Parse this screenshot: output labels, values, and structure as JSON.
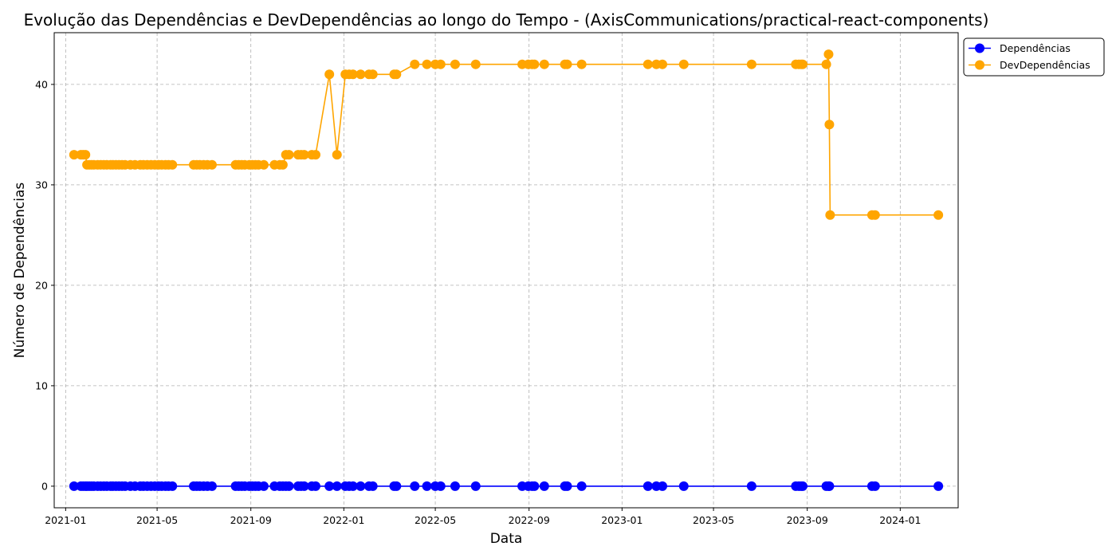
{
  "chart_data": {
    "type": "line",
    "title": "Evolução das Dependências e DevDependências ao longo do Tempo - (AxisCommunications/practical-react-components)",
    "xlabel": "Data",
    "ylabel": "Número de Dependências",
    "x_ticks": [
      "2021-01",
      "2021-05",
      "2021-09",
      "2022-01",
      "2022-05",
      "2022-09",
      "2023-01",
      "2023-05",
      "2023-09",
      "2024-01"
    ],
    "xlim": [
      "2020-12-17",
      "2024-03-17"
    ],
    "y_ticks": [
      0,
      10,
      20,
      30,
      40
    ],
    "ylim": [
      -2.15,
      45.15
    ],
    "grid": true,
    "legend_position": "outside-top-right",
    "series": [
      {
        "name": "Dependências",
        "color": "#0000ff",
        "points": [
          [
            "2021-01-12",
            0
          ],
          [
            "2021-01-21",
            0
          ],
          [
            "2021-01-24",
            0
          ],
          [
            "2021-01-27",
            0
          ],
          [
            "2021-01-29",
            0
          ],
          [
            "2021-02-01",
            0
          ],
          [
            "2021-02-04",
            0
          ],
          [
            "2021-02-07",
            0
          ],
          [
            "2021-02-12",
            0
          ],
          [
            "2021-02-16",
            0
          ],
          [
            "2021-02-20",
            0
          ],
          [
            "2021-02-24",
            0
          ],
          [
            "2021-03-01",
            0
          ],
          [
            "2021-03-04",
            0
          ],
          [
            "2021-03-08",
            0
          ],
          [
            "2021-03-12",
            0
          ],
          [
            "2021-03-16",
            0
          ],
          [
            "2021-03-20",
            0
          ],
          [
            "2021-03-27",
            0
          ],
          [
            "2021-04-02",
            0
          ],
          [
            "2021-04-09",
            0
          ],
          [
            "2021-04-13",
            0
          ],
          [
            "2021-04-18",
            0
          ],
          [
            "2021-04-23",
            0
          ],
          [
            "2021-04-28",
            0
          ],
          [
            "2021-05-03",
            0
          ],
          [
            "2021-05-07",
            0
          ],
          [
            "2021-05-12",
            0
          ],
          [
            "2021-05-16",
            0
          ],
          [
            "2021-05-21",
            0
          ],
          [
            "2021-06-18",
            0
          ],
          [
            "2021-06-22",
            0
          ],
          [
            "2021-06-26",
            0
          ],
          [
            "2021-07-01",
            0
          ],
          [
            "2021-07-06",
            0
          ],
          [
            "2021-07-12",
            0
          ],
          [
            "2021-08-12",
            0
          ],
          [
            "2021-08-16",
            0
          ],
          [
            "2021-08-20",
            0
          ],
          [
            "2021-08-24",
            0
          ],
          [
            "2021-08-30",
            0
          ],
          [
            "2021-09-03",
            0
          ],
          [
            "2021-09-07",
            0
          ],
          [
            "2021-09-11",
            0
          ],
          [
            "2021-09-18",
            0
          ],
          [
            "2021-10-02",
            0
          ],
          [
            "2021-10-09",
            0
          ],
          [
            "2021-10-13",
            0
          ],
          [
            "2021-10-17",
            0
          ],
          [
            "2021-10-21",
            0
          ],
          [
            "2021-11-02",
            0
          ],
          [
            "2021-11-06",
            0
          ],
          [
            "2021-11-10",
            0
          ],
          [
            "2021-11-20",
            0
          ],
          [
            "2021-11-25",
            0
          ],
          [
            "2021-12-13",
            0
          ],
          [
            "2021-12-23",
            0
          ],
          [
            "2022-01-03",
            0
          ],
          [
            "2022-01-08",
            0
          ],
          [
            "2022-01-13",
            0
          ],
          [
            "2022-01-23",
            0
          ],
          [
            "2022-02-03",
            0
          ],
          [
            "2022-02-08",
            0
          ],
          [
            "2022-03-08",
            0
          ],
          [
            "2022-03-11",
            0
          ],
          [
            "2022-04-04",
            0
          ],
          [
            "2022-04-20",
            0
          ],
          [
            "2022-05-01",
            0
          ],
          [
            "2022-05-08",
            0
          ],
          [
            "2022-05-27",
            0
          ],
          [
            "2022-06-23",
            0
          ],
          [
            "2022-08-23",
            0
          ],
          [
            "2022-08-31",
            0
          ],
          [
            "2022-09-05",
            0
          ],
          [
            "2022-09-08",
            0
          ],
          [
            "2022-09-21",
            0
          ],
          [
            "2022-10-18",
            0
          ],
          [
            "2022-10-21",
            0
          ],
          [
            "2022-11-09",
            0
          ],
          [
            "2023-02-04",
            0
          ],
          [
            "2023-02-15",
            0
          ],
          [
            "2023-02-23",
            0
          ],
          [
            "2023-03-23",
            0
          ],
          [
            "2023-06-20",
            0
          ],
          [
            "2023-08-17",
            0
          ],
          [
            "2023-08-21",
            0
          ],
          [
            "2023-08-24",
            0
          ],
          [
            "2023-08-26",
            0
          ],
          [
            "2023-09-26",
            0
          ],
          [
            "2023-09-29",
            0
          ],
          [
            "2023-09-30",
            0
          ],
          [
            "2023-11-25",
            0
          ],
          [
            "2023-11-29",
            0
          ],
          [
            "2024-02-20",
            0
          ]
        ]
      },
      {
        "name": "DevDependências",
        "color": "#ffa500",
        "points": [
          [
            "2021-01-12",
            33
          ],
          [
            "2021-01-21",
            33
          ],
          [
            "2021-01-24",
            33
          ],
          [
            "2021-01-27",
            33
          ],
          [
            "2021-01-29",
            32
          ],
          [
            "2021-02-01",
            32
          ],
          [
            "2021-02-04",
            32
          ],
          [
            "2021-02-07",
            32
          ],
          [
            "2021-02-12",
            32
          ],
          [
            "2021-02-16",
            32
          ],
          [
            "2021-02-20",
            32
          ],
          [
            "2021-02-24",
            32
          ],
          [
            "2021-03-01",
            32
          ],
          [
            "2021-03-04",
            32
          ],
          [
            "2021-03-08",
            32
          ],
          [
            "2021-03-12",
            32
          ],
          [
            "2021-03-16",
            32
          ],
          [
            "2021-03-20",
            32
          ],
          [
            "2021-03-27",
            32
          ],
          [
            "2021-04-02",
            32
          ],
          [
            "2021-04-09",
            32
          ],
          [
            "2021-04-13",
            32
          ],
          [
            "2021-04-18",
            32
          ],
          [
            "2021-04-23",
            32
          ],
          [
            "2021-04-28",
            32
          ],
          [
            "2021-05-03",
            32
          ],
          [
            "2021-05-07",
            32
          ],
          [
            "2021-05-12",
            32
          ],
          [
            "2021-05-16",
            32
          ],
          [
            "2021-05-21",
            32
          ],
          [
            "2021-06-18",
            32
          ],
          [
            "2021-06-22",
            32
          ],
          [
            "2021-06-26",
            32
          ],
          [
            "2021-07-01",
            32
          ],
          [
            "2021-07-06",
            32
          ],
          [
            "2021-07-12",
            32
          ],
          [
            "2021-08-12",
            32
          ],
          [
            "2021-08-16",
            32
          ],
          [
            "2021-08-20",
            32
          ],
          [
            "2021-08-24",
            32
          ],
          [
            "2021-08-30",
            32
          ],
          [
            "2021-09-03",
            32
          ],
          [
            "2021-09-07",
            32
          ],
          [
            "2021-09-11",
            32
          ],
          [
            "2021-09-18",
            32
          ],
          [
            "2021-10-02",
            32
          ],
          [
            "2021-10-09",
            32
          ],
          [
            "2021-10-13",
            32
          ],
          [
            "2021-10-17",
            33
          ],
          [
            "2021-10-21",
            33
          ],
          [
            "2021-11-02",
            33
          ],
          [
            "2021-11-06",
            33
          ],
          [
            "2021-11-10",
            33
          ],
          [
            "2021-11-20",
            33
          ],
          [
            "2021-11-25",
            33
          ],
          [
            "2021-12-13",
            41
          ],
          [
            "2021-12-23",
            33
          ],
          [
            "2022-01-03",
            41
          ],
          [
            "2022-01-08",
            41
          ],
          [
            "2022-01-13",
            41
          ],
          [
            "2022-01-23",
            41
          ],
          [
            "2022-02-03",
            41
          ],
          [
            "2022-02-08",
            41
          ],
          [
            "2022-03-08",
            41
          ],
          [
            "2022-03-11",
            41
          ],
          [
            "2022-04-04",
            42
          ],
          [
            "2022-04-20",
            42
          ],
          [
            "2022-05-01",
            42
          ],
          [
            "2022-05-08",
            42
          ],
          [
            "2022-05-27",
            42
          ],
          [
            "2022-06-23",
            42
          ],
          [
            "2022-08-23",
            42
          ],
          [
            "2022-08-31",
            42
          ],
          [
            "2022-09-05",
            42
          ],
          [
            "2022-09-08",
            42
          ],
          [
            "2022-09-21",
            42
          ],
          [
            "2022-10-18",
            42
          ],
          [
            "2022-10-21",
            42
          ],
          [
            "2022-11-09",
            42
          ],
          [
            "2023-02-04",
            42
          ],
          [
            "2023-02-15",
            42
          ],
          [
            "2023-02-23",
            42
          ],
          [
            "2023-03-23",
            42
          ],
          [
            "2023-06-20",
            42
          ],
          [
            "2023-08-17",
            42
          ],
          [
            "2023-08-21",
            42
          ],
          [
            "2023-08-24",
            42
          ],
          [
            "2023-08-26",
            42
          ],
          [
            "2023-09-26",
            42
          ],
          [
            "2023-09-29",
            43
          ],
          [
            "2023-09-30",
            36
          ],
          [
            "2023-10-01",
            27
          ],
          [
            "2023-11-25",
            27
          ],
          [
            "2023-11-29",
            27
          ],
          [
            "2024-02-20",
            27
          ]
        ]
      }
    ]
  }
}
